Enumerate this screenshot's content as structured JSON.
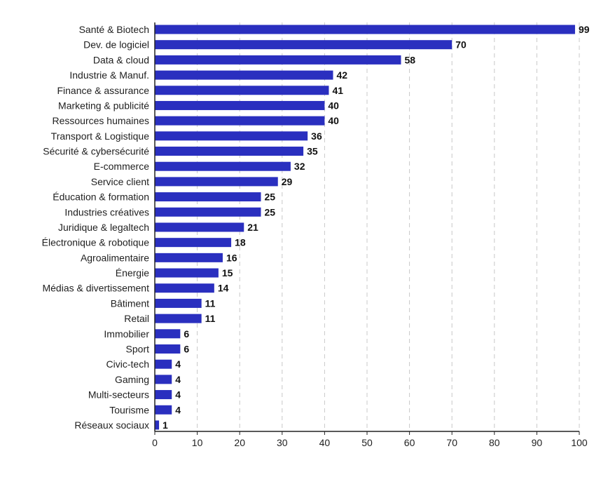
{
  "chart_data": {
    "type": "bar",
    "orientation": "horizontal",
    "title": "",
    "xlabel": "",
    "ylabel": "",
    "xlim": [
      0,
      100
    ],
    "xticks": [
      0,
      10,
      20,
      30,
      40,
      50,
      60,
      70,
      80,
      90,
      100
    ],
    "grid": "vertical dashed",
    "bar_color": "#2a2fbf",
    "categories": [
      "Santé & Biotech",
      "Dev. de logiciel",
      "Data & cloud",
      "Industrie & Manuf.",
      "Finance & assurance",
      "Marketing & publicité",
      "Ressources humaines",
      "Transport & Logistique",
      "Sécurité & cybersécurité",
      "E-commerce",
      "Service client",
      "Éducation & formation",
      "Industries créatives",
      "Juridique & legaltech",
      "Électronique & robotique",
      "Agroalimentaire",
      "Énergie",
      "Médias & divertissement",
      "Bâtiment",
      "Retail",
      "Immobilier",
      "Sport",
      "Civic-tech",
      "Gaming",
      "Multi-secteurs",
      "Tourisme",
      "Réseaux sociaux"
    ],
    "values": [
      99,
      70,
      58,
      42,
      41,
      40,
      40,
      36,
      35,
      32,
      29,
      25,
      25,
      21,
      18,
      16,
      15,
      14,
      11,
      11,
      6,
      6,
      4,
      4,
      4,
      4,
      1
    ]
  }
}
